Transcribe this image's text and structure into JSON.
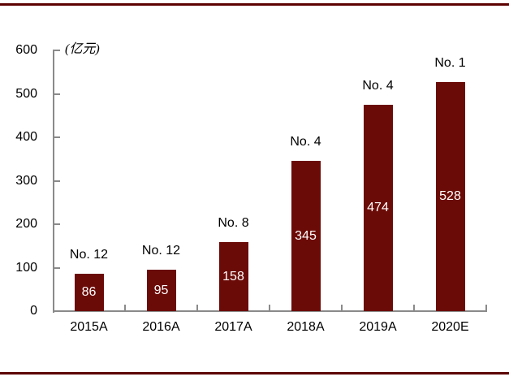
{
  "chart_data": {
    "type": "bar",
    "title": "",
    "unit_label": "(亿元)",
    "categories": [
      "2015A",
      "2016A",
      "2017A",
      "2018A",
      "2019A",
      "2020E"
    ],
    "values": [
      86,
      95,
      158,
      345,
      474,
      528
    ],
    "rank_labels": [
      "No. 12",
      "No. 12",
      "No. 8",
      "No. 4",
      "No. 4",
      "No. 1"
    ],
    "ylim": [
      0,
      600
    ],
    "yticks": [
      0,
      100,
      200,
      300,
      400,
      500,
      600
    ],
    "grid": false,
    "legend": "none",
    "colors": {
      "bar": "#6B0B08",
      "rule": "#5C0100",
      "axis": "#8A8A8A",
      "value_label": "#FFFFFF",
      "text": "#000000"
    }
  }
}
